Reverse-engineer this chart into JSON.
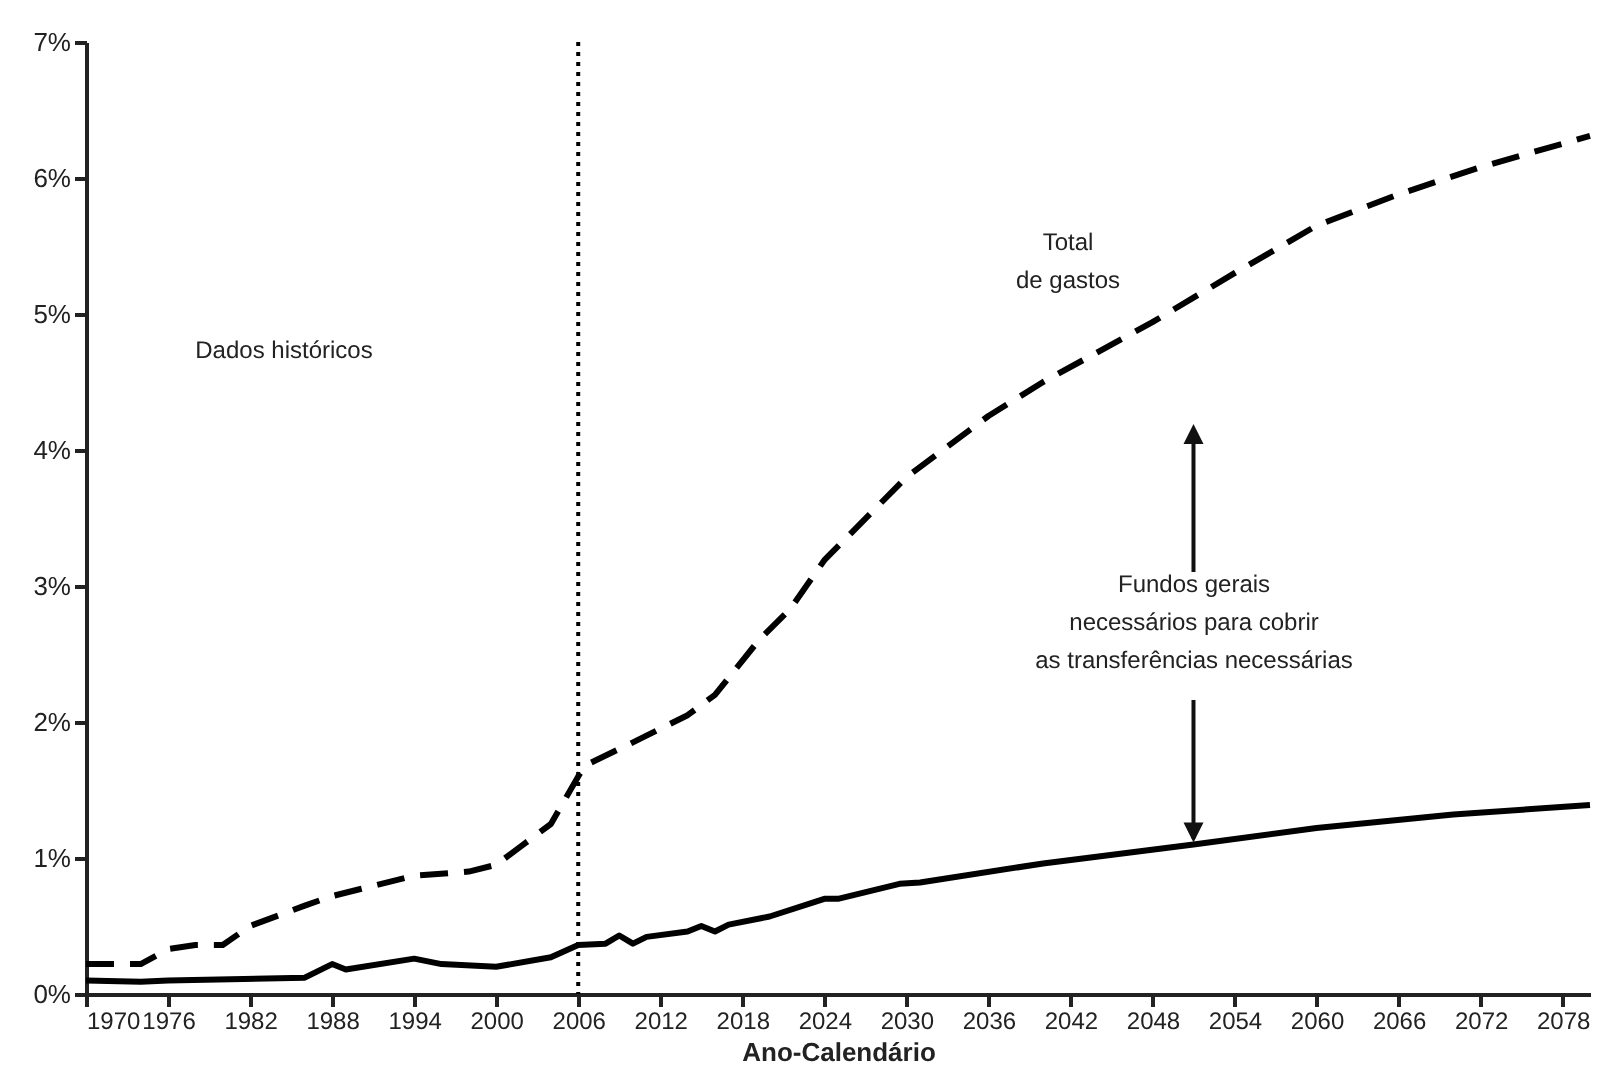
{
  "chart_data": {
    "type": "line",
    "xlabel": "Ano-Calendário",
    "annotations": [
      "Dados históricos",
      "Total\nde gastos",
      {
        "text": "Fundos gerais\nnecessários para cobrir\nas transferências necessárias",
        "x": 2051,
        "y": 1.1
      }
    ],
    "series": [
      {
        "color": "#000000",
        "line_style": "dashed",
        "x": [
          1970,
          1974,
          1976,
          1978,
          1980,
          1982,
          1986,
          1988,
          1990,
          1994,
          1998,
          2000,
          2002,
          2004,
          2006,
          2006.5,
          2010,
          2014,
          2016,
          2018,
          2019.2,
          2021.5,
          2024,
          2030,
          2036,
          2040,
          2048,
          2054,
          2060,
          2066,
          2072,
          2080
        ],
        "values": [
          0.22,
          0.22,
          0.33,
          0.36,
          0.36,
          0.5,
          0.65,
          0.72,
          0.77,
          0.87,
          0.9,
          0.95,
          1.1,
          1.25,
          1.6,
          1.68,
          1.85,
          2.05,
          2.2,
          2.45,
          2.6,
          2.83,
          3.19,
          3.8,
          4.25,
          4.5,
          4.94,
          5.3,
          5.65,
          5.88,
          6.08,
          6.31
        ]
      },
      {
        "color": "#000000",
        "line_style": "solid",
        "x": [
          1970,
          1974,
          1976,
          1986,
          1988,
          1989,
          1994,
          1996,
          2000,
          2004,
          2006,
          2008,
          2009,
          2010,
          2011,
          2014,
          2015,
          2016,
          2017,
          2020,
          2024,
          2025,
          2029.5,
          2031,
          2040,
          2051,
          2060,
          2070,
          2080
        ],
        "values": [
          0.1,
          0.09,
          0.1,
          0.12,
          0.22,
          0.18,
          0.26,
          0.22,
          0.2,
          0.27,
          0.36,
          0.37,
          0.43,
          0.37,
          0.42,
          0.46,
          0.5,
          0.46,
          0.51,
          0.57,
          0.7,
          0.7,
          0.81,
          0.82,
          0.96,
          1.1,
          1.22,
          1.32,
          1.39
        ]
      }
    ],
    "xlim": [
      1970,
      2080
    ],
    "xticks": [
      1970,
      1976,
      1982,
      1988,
      1994,
      2000,
      2006,
      2012,
      2018,
      2024,
      2030,
      2036,
      2042,
      2048,
      2054,
      2060,
      2066,
      2072,
      2078
    ],
    "ylim": [
      0,
      7
    ],
    "yticks": [
      {
        "value": 0,
        "label": "0%"
      },
      {
        "value": 1,
        "label": "1%"
      },
      {
        "value": 2,
        "label": "2%"
      },
      {
        "value": 3,
        "label": "3%"
      },
      {
        "value": 4,
        "label": "4%"
      },
      {
        "value": 5,
        "label": "5%"
      },
      {
        "value": 6,
        "label": "6%"
      },
      {
        "value": 7,
        "label": "7%"
      }
    ],
    "ref_lines": [
      {
        "axis": "x",
        "value": 2006,
        "color": "#000000",
        "line_style": "dotted"
      }
    ],
    "grid": false,
    "marker": "none"
  }
}
